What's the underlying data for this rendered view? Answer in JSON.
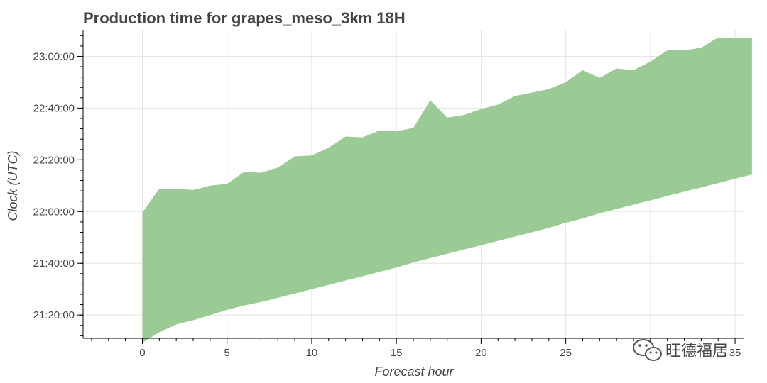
{
  "chart_data": {
    "type": "area",
    "title": "Production time for grapes_meso_3km 18H",
    "xlabel": "Forecast hour",
    "ylabel": "Clock (UTC)",
    "xlim": [
      -3.5,
      35.5
    ],
    "ylim": [
      "21:11:00",
      "23:10:00"
    ],
    "grid": true,
    "x_ticks": [
      0,
      5,
      10,
      15,
      20,
      25,
      30,
      35
    ],
    "x_tick_labels": [
      "0",
      "5",
      "10",
      "15",
      "20",
      "25",
      "30",
      "35"
    ],
    "y_ticks": [
      "21:20:00",
      "21:40:00",
      "22:00:00",
      "22:20:00",
      "22:40:00",
      "23:00:00"
    ],
    "x": [
      0,
      1,
      2,
      3,
      4,
      5,
      6,
      7,
      8,
      9,
      10,
      11,
      12,
      13,
      14,
      15,
      16,
      17,
      18,
      19,
      20,
      21,
      22,
      23,
      24,
      25,
      26,
      27,
      28,
      29,
      30,
      31,
      32,
      33,
      34,
      35,
      36
    ],
    "upper": [
      "21:59:40",
      "22:08:50",
      "22:08:50",
      "22:08:20",
      "22:10:00",
      "22:10:40",
      "22:15:20",
      "22:15:00",
      "22:17:00",
      "22:21:20",
      "22:21:40",
      "22:24:40",
      "22:29:00",
      "22:28:40",
      "22:31:20",
      "22:31:00",
      "22:32:20",
      "22:43:00",
      "22:36:20",
      "22:37:20",
      "22:39:40",
      "22:41:20",
      "22:44:40",
      "22:46:00",
      "22:47:20",
      "22:50:00",
      "22:54:40",
      "22:51:40",
      "22:55:20",
      "22:54:40",
      "22:58:00",
      "23:02:20",
      "23:02:20",
      "23:03:20",
      "23:07:20",
      "23:07:00",
      "23:07:20"
    ],
    "lower": [
      "21:09:20",
      "21:13:20",
      "21:16:20",
      "21:18:00",
      "21:20:00",
      "21:22:00",
      "21:23:40",
      "21:25:00",
      "21:26:40",
      "21:28:20",
      "21:30:00",
      "21:31:40",
      "21:33:20",
      "21:35:00",
      "21:36:40",
      "21:38:20",
      "21:40:20",
      "21:42:00",
      "21:43:40",
      "21:45:20",
      "21:47:00",
      "21:48:40",
      "21:50:20",
      "21:52:00",
      "21:53:40",
      "21:55:40",
      "21:57:20",
      "21:59:20",
      "22:01:00",
      "22:02:40",
      "22:04:20",
      "22:06:00",
      "22:07:40",
      "22:09:20",
      "22:11:00",
      "22:12:40",
      "22:14:20"
    ],
    "fill_color": "#9bcb95",
    "series": [
      {
        "name": "",
        "type": "band"
      }
    ]
  },
  "watermark": {
    "text": "旺德福居",
    "icon": "wechat-icon"
  }
}
